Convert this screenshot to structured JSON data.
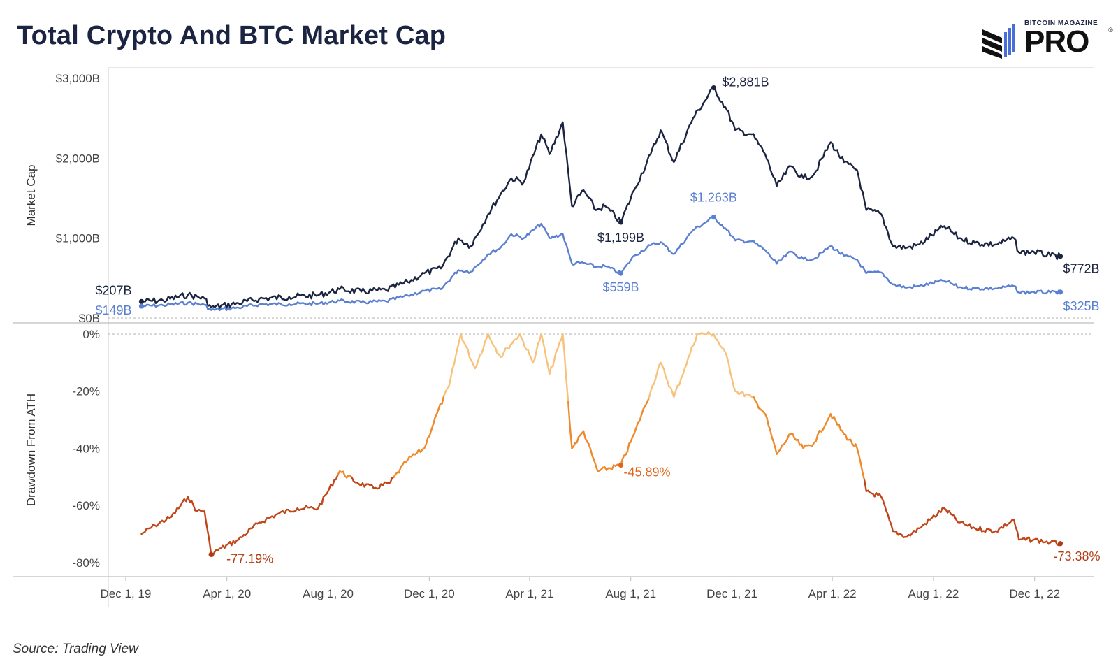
{
  "header": {
    "title": "Total Crypto And BTC Market Cap",
    "logo_small": "BITCOIN MAGAZINE",
    "logo_big": "PRO",
    "logo_reg": "®"
  },
  "footer": {
    "source": "Source: Trading View"
  },
  "colors": {
    "total": "#1b2440",
    "btc": "#5b80d1",
    "drawdown_light": "#f7c27a",
    "drawdown_mid": "#ee8a2c",
    "drawdown_dark": "#c0461a",
    "annotation_btc": "#5b80d1",
    "annotation_dd_mid": "#e0661c",
    "annotation_dd_dark": "#b23a10"
  },
  "chart_data": [
    {
      "type": "line",
      "title": "Total Crypto And BTC Market Cap",
      "ylabel": "Market Cap",
      "ylim": [
        0,
        3000
      ],
      "yticks": [
        {
          "value": 0,
          "label": "$0B"
        },
        {
          "value": 1000,
          "label": "$1,000B"
        },
        {
          "value": 2000,
          "label": "$2,000B"
        },
        {
          "value": 3000,
          "label": "$3,000B"
        }
      ],
      "xlim": [
        "2019-11-10",
        "2023-02-10"
      ],
      "xticks": [
        {
          "date": "2019-12-01",
          "label": "Dec 1, 19"
        },
        {
          "date": "2020-04-01",
          "label": "Apr 1, 20"
        },
        {
          "date": "2020-08-01",
          "label": "Aug 1, 20"
        },
        {
          "date": "2020-12-01",
          "label": "Dec 1, 20"
        },
        {
          "date": "2021-04-01",
          "label": "Apr 1, 21"
        },
        {
          "date": "2021-08-01",
          "label": "Aug 1, 21"
        },
        {
          "date": "2021-12-01",
          "label": "Dec 1, 21"
        },
        {
          "date": "2022-04-01",
          "label": "Apr 1, 22"
        },
        {
          "date": "2022-08-01",
          "label": "Aug 1, 22"
        },
        {
          "date": "2022-12-01",
          "label": "Dec 1, 22"
        }
      ],
      "series": [
        {
          "key": "total",
          "points": [
            [
              "2019-12-20",
              207
            ],
            [
              "2020-01-15",
              220
            ],
            [
              "2020-02-14",
              290
            ],
            [
              "2020-03-05",
              245
            ],
            [
              "2020-03-13",
              130
            ],
            [
              "2020-04-15",
              185
            ],
            [
              "2020-05-10",
              240
            ],
            [
              "2020-06-15",
              265
            ],
            [
              "2020-07-20",
              285
            ],
            [
              "2020-08-15",
              360
            ],
            [
              "2020-09-10",
              330
            ],
            [
              "2020-10-10",
              350
            ],
            [
              "2020-11-05",
              450
            ],
            [
              "2020-11-25",
              560
            ],
            [
              "2020-12-15",
              620
            ],
            [
              "2021-01-05",
              1000
            ],
            [
              "2021-01-20",
              900
            ],
            [
              "2021-02-10",
              1300
            ],
            [
              "2021-02-25",
              1550
            ],
            [
              "2021-03-10",
              1750
            ],
            [
              "2021-03-25",
              1700
            ],
            [
              "2021-04-15",
              2300
            ],
            [
              "2021-04-25",
              2050
            ],
            [
              "2021-05-11",
              2450
            ],
            [
              "2021-05-22",
              1400
            ],
            [
              "2021-06-05",
              1600
            ],
            [
              "2021-06-20",
              1350
            ],
            [
              "2021-07-01",
              1400
            ],
            [
              "2021-07-20",
              1199
            ],
            [
              "2021-08-05",
              1600
            ],
            [
              "2021-08-25",
              2050
            ],
            [
              "2021-09-06",
              2350
            ],
            [
              "2021-09-22",
              1950
            ],
            [
              "2021-10-15",
              2500
            ],
            [
              "2021-11-09",
              2881
            ],
            [
              "2021-11-25",
              2600
            ],
            [
              "2021-12-05",
              2350
            ],
            [
              "2021-12-25",
              2300
            ],
            [
              "2022-01-10",
              2050
            ],
            [
              "2022-01-24",
              1650
            ],
            [
              "2022-02-10",
              1900
            ],
            [
              "2022-02-25",
              1750
            ],
            [
              "2022-03-10",
              1800
            ],
            [
              "2022-03-30",
              2200
            ],
            [
              "2022-04-15",
              1950
            ],
            [
              "2022-05-01",
              1850
            ],
            [
              "2022-05-12",
              1350
            ],
            [
              "2022-05-30",
              1300
            ],
            [
              "2022-06-13",
              900
            ],
            [
              "2022-06-30",
              880
            ],
            [
              "2022-07-15",
              920
            ],
            [
              "2022-08-14",
              1150
            ],
            [
              "2022-09-01",
              1000
            ],
            [
              "2022-09-20",
              940
            ],
            [
              "2022-10-15",
              920
            ],
            [
              "2022-11-06",
              1000
            ],
            [
              "2022-11-12",
              820
            ],
            [
              "2022-11-30",
              830
            ],
            [
              "2022-12-20",
              780
            ],
            [
              "2023-01-01",
              772
            ]
          ]
        },
        {
          "key": "btc",
          "points": [
            [
              "2019-12-20",
              149
            ],
            [
              "2020-01-15",
              160
            ],
            [
              "2020-02-14",
              190
            ],
            [
              "2020-03-05",
              165
            ],
            [
              "2020-03-13",
              100
            ],
            [
              "2020-04-15",
              130
            ],
            [
              "2020-05-10",
              170
            ],
            [
              "2020-06-15",
              175
            ],
            [
              "2020-07-20",
              180
            ],
            [
              "2020-08-15",
              215
            ],
            [
              "2020-09-10",
              195
            ],
            [
              "2020-10-10",
              210
            ],
            [
              "2020-11-05",
              280
            ],
            [
              "2020-11-25",
              340
            ],
            [
              "2020-12-15",
              360
            ],
            [
              "2021-01-05",
              600
            ],
            [
              "2021-01-20",
              580
            ],
            [
              "2021-02-10",
              800
            ],
            [
              "2021-02-25",
              880
            ],
            [
              "2021-03-10",
              1050
            ],
            [
              "2021-03-25",
              1000
            ],
            [
              "2021-04-15",
              1180
            ],
            [
              "2021-04-25",
              1000
            ],
            [
              "2021-05-11",
              1050
            ],
            [
              "2021-05-22",
              680
            ],
            [
              "2021-06-05",
              690
            ],
            [
              "2021-06-20",
              640
            ],
            [
              "2021-07-01",
              650
            ],
            [
              "2021-07-20",
              559
            ],
            [
              "2021-08-05",
              780
            ],
            [
              "2021-08-25",
              910
            ],
            [
              "2021-09-06",
              950
            ],
            [
              "2021-09-22",
              800
            ],
            [
              "2021-10-15",
              1100
            ],
            [
              "2021-11-09",
              1263
            ],
            [
              "2021-11-25",
              1100
            ],
            [
              "2021-12-05",
              970
            ],
            [
              "2021-12-25",
              960
            ],
            [
              "2022-01-10",
              850
            ],
            [
              "2022-01-24",
              680
            ],
            [
              "2022-02-10",
              830
            ],
            [
              "2022-02-25",
              740
            ],
            [
              "2022-03-10",
              740
            ],
            [
              "2022-03-30",
              900
            ],
            [
              "2022-04-15",
              780
            ],
            [
              "2022-05-01",
              730
            ],
            [
              "2022-05-12",
              560
            ],
            [
              "2022-05-30",
              570
            ],
            [
              "2022-06-13",
              420
            ],
            [
              "2022-06-30",
              380
            ],
            [
              "2022-07-15",
              400
            ],
            [
              "2022-08-14",
              470
            ],
            [
              "2022-09-01",
              385
            ],
            [
              "2022-09-20",
              370
            ],
            [
              "2022-10-15",
              370
            ],
            [
              "2022-11-06",
              400
            ],
            [
              "2022-11-12",
              320
            ],
            [
              "2022-11-30",
              325
            ],
            [
              "2022-12-20",
              320
            ],
            [
              "2023-01-01",
              325
            ]
          ]
        }
      ],
      "annotations": [
        {
          "series": "total",
          "date": "2019-12-20",
          "value": 207,
          "label": "$207B"
        },
        {
          "series": "btc",
          "date": "2019-12-20",
          "value": 149,
          "label": "$149B"
        },
        {
          "series": "total",
          "date": "2021-11-09",
          "value": 2881,
          "label": "$2,881B"
        },
        {
          "series": "total",
          "date": "2021-07-20",
          "value": 1199,
          "label": "$1,199B"
        },
        {
          "series": "btc",
          "date": "2021-11-09",
          "value": 1263,
          "label": "$1,263B"
        },
        {
          "series": "btc",
          "date": "2021-07-20",
          "value": 559,
          "label": "$559B"
        },
        {
          "series": "total",
          "date": "2023-01-01",
          "value": 772,
          "label": "$772B"
        },
        {
          "series": "btc",
          "date": "2023-01-01",
          "value": 325,
          "label": "$325B"
        }
      ]
    },
    {
      "type": "line",
      "ylabel": "Drawdown From ATH",
      "ylim": [
        -82,
        0
      ],
      "yticks": [
        {
          "value": 0,
          "label": "0%"
        },
        {
          "value": -20,
          "label": "-20%"
        },
        {
          "value": -40,
          "label": "-40%"
        },
        {
          "value": -60,
          "label": "-60%"
        },
        {
          "value": -80,
          "label": "-80%"
        }
      ],
      "series": [
        {
          "key": "drawdown",
          "points": [
            [
              "2019-12-20",
              -70
            ],
            [
              "2020-01-05",
              -67
            ],
            [
              "2020-01-25",
              -64
            ],
            [
              "2020-02-14",
              -57
            ],
            [
              "2020-02-25",
              -62
            ],
            [
              "2020-03-05",
              -62
            ],
            [
              "2020-03-13",
              -77.19
            ],
            [
              "2020-03-25",
              -75
            ],
            [
              "2020-04-15",
              -72
            ],
            [
              "2020-05-10",
              -66
            ],
            [
              "2020-06-01",
              -63
            ],
            [
              "2020-06-25",
              -61
            ],
            [
              "2020-07-20",
              -61
            ],
            [
              "2020-08-15",
              -48
            ],
            [
              "2020-09-05",
              -52
            ],
            [
              "2020-09-25",
              -54
            ],
            [
              "2020-10-15",
              -52
            ],
            [
              "2020-11-05",
              -44
            ],
            [
              "2020-11-25",
              -40
            ],
            [
              "2020-12-10",
              -28
            ],
            [
              "2020-12-25",
              -18
            ],
            [
              "2021-01-08",
              0
            ],
            [
              "2021-01-25",
              -12
            ],
            [
              "2021-02-10",
              0
            ],
            [
              "2021-02-25",
              -8
            ],
            [
              "2021-03-05",
              -5
            ],
            [
              "2021-03-20",
              0
            ],
            [
              "2021-04-05",
              -10
            ],
            [
              "2021-04-15",
              0
            ],
            [
              "2021-04-25",
              -14
            ],
            [
              "2021-05-11",
              0
            ],
            [
              "2021-05-22",
              -40
            ],
            [
              "2021-06-05",
              -34
            ],
            [
              "2021-06-22",
              -48
            ],
            [
              "2021-07-20",
              -45.89
            ],
            [
              "2021-08-05",
              -35
            ],
            [
              "2021-08-25",
              -20
            ],
            [
              "2021-09-06",
              -10
            ],
            [
              "2021-09-22",
              -22
            ],
            [
              "2021-10-05",
              -12
            ],
            [
              "2021-10-20",
              0
            ],
            [
              "2021-11-09",
              0
            ],
            [
              "2021-11-25",
              -8
            ],
            [
              "2021-12-05",
              -20
            ],
            [
              "2021-12-25",
              -22
            ],
            [
              "2022-01-10",
              -28
            ],
            [
              "2022-01-24",
              -42
            ],
            [
              "2022-02-10",
              -35
            ],
            [
              "2022-02-25",
              -40
            ],
            [
              "2022-03-10",
              -38
            ],
            [
              "2022-03-30",
              -28
            ],
            [
              "2022-04-15",
              -35
            ],
            [
              "2022-05-01",
              -40
            ],
            [
              "2022-05-12",
              -55
            ],
            [
              "2022-05-30",
              -57
            ],
            [
              "2022-06-13",
              -69
            ],
            [
              "2022-06-30",
              -71
            ],
            [
              "2022-07-15",
              -68
            ],
            [
              "2022-08-14",
              -61
            ],
            [
              "2022-09-01",
              -66
            ],
            [
              "2022-09-20",
              -68
            ],
            [
              "2022-10-15",
              -69
            ],
            [
              "2022-11-06",
              -65
            ],
            [
              "2022-11-12",
              -72
            ],
            [
              "2022-11-30",
              -72
            ],
            [
              "2022-12-20",
              -73
            ],
            [
              "2023-01-01",
              -73.38
            ]
          ]
        }
      ],
      "annotations": [
        {
          "date": "2020-03-13",
          "value": -77.19,
          "label": "-77.19%"
        },
        {
          "date": "2021-07-20",
          "value": -45.89,
          "label": "-45.89%"
        },
        {
          "date": "2023-01-01",
          "value": -73.38,
          "label": "-73.38%"
        }
      ]
    }
  ]
}
